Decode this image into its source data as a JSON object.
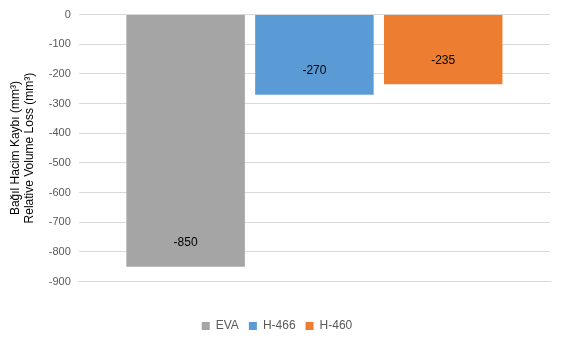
{
  "chart_data": {
    "type": "bar",
    "y_label": [
      "Bağıl Hacim Kaybı (mm³)",
      "Relative Volume Loss (mm³)"
    ],
    "categories": [
      null
    ],
    "series": [
      {
        "name": "EVA",
        "color": "#a5a5a5",
        "values": [
          -850
        ]
      },
      {
        "name": "H-466",
        "color": "#5b9bd5",
        "values": [
          -270
        ]
      },
      {
        "name": "H-460",
        "color": "#ed7d31",
        "values": [
          -235
        ]
      }
    ],
    "ylim": [
      -900,
      0
    ],
    "yticks": [
      -900,
      -800,
      -700,
      -600,
      -500,
      -400,
      -300,
      -200,
      -100,
      0
    ],
    "grid": true,
    "legend": "bottom",
    "data_labels": true
  }
}
